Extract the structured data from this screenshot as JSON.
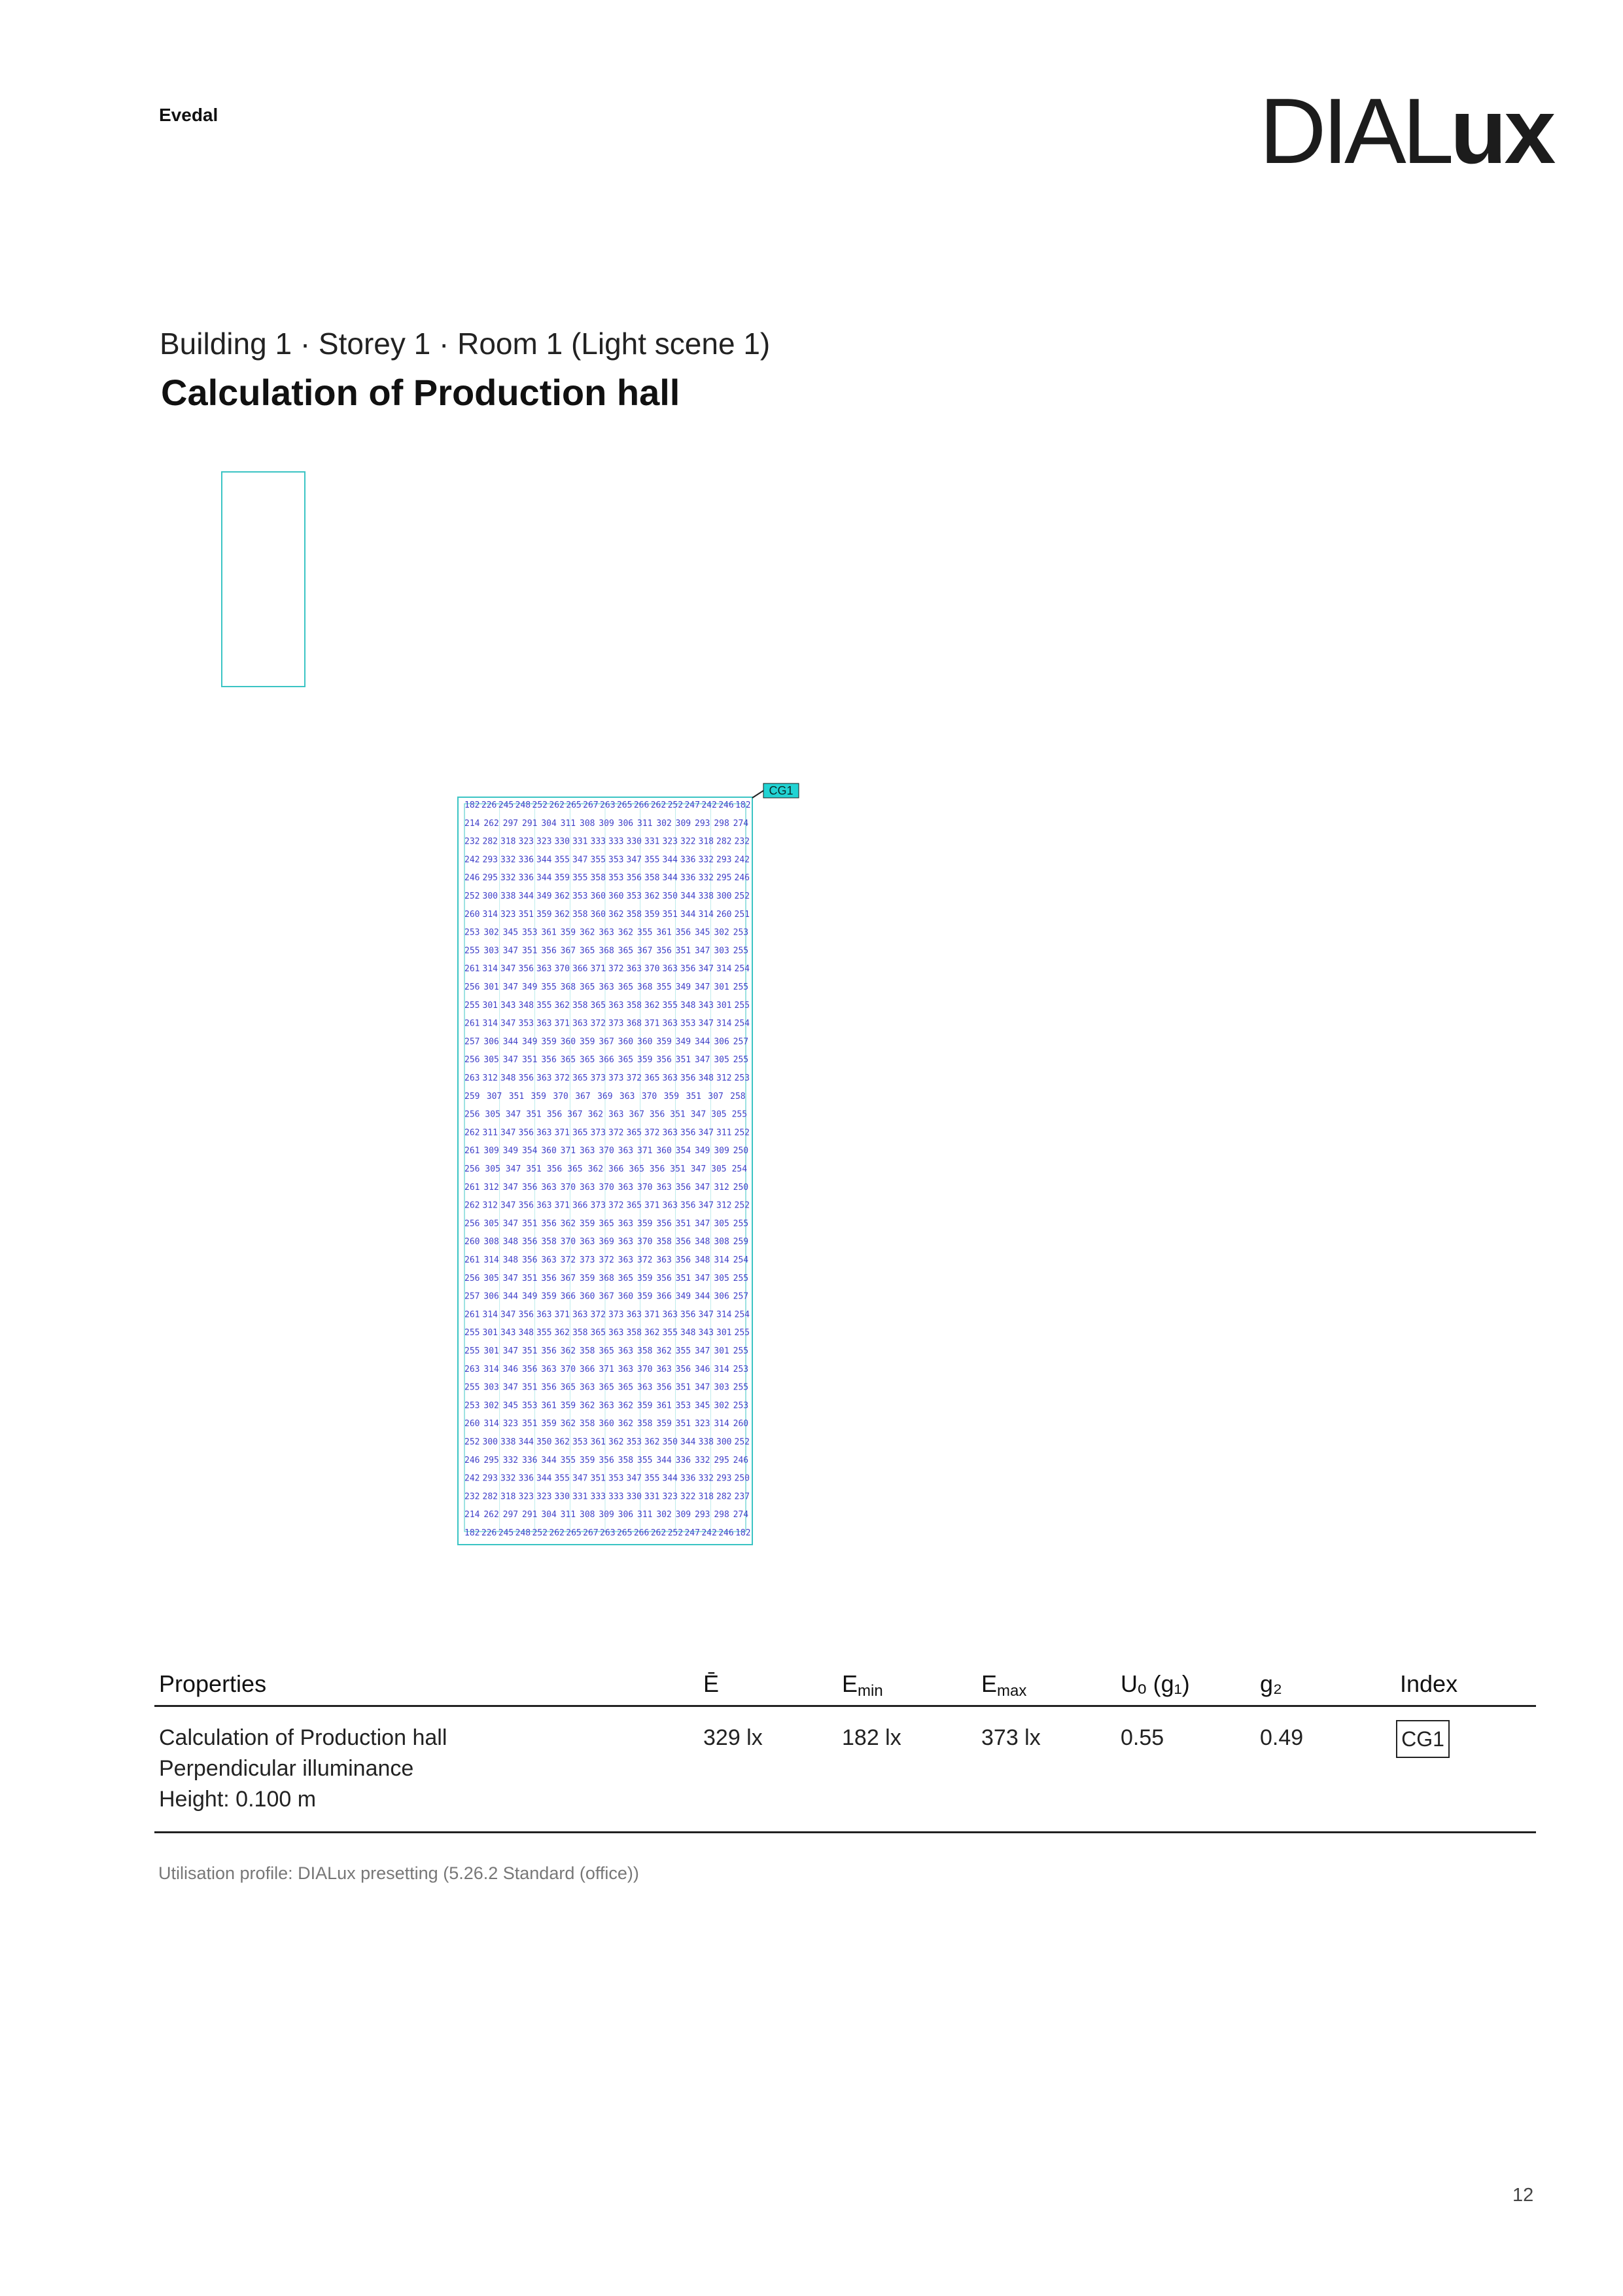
{
  "header": {
    "company": "Evedal",
    "logo_thin": "DIAL",
    "logo_bold": "ux"
  },
  "page": {
    "subtitle": "Building 1 · Storey 1 · Room 1 (Light scene 1)",
    "title": "Calculation of Production hall",
    "page_number": "12"
  },
  "diagram": {
    "label": "CG1",
    "colors": {
      "outline": "#3bc4c4",
      "values": "#3f3fc8",
      "label_fill": "#22d3d3"
    }
  },
  "grid_values": {
    "rows": [
      [
        "182",
        "226",
        "245",
        "248",
        "252",
        "262",
        "265",
        "267",
        "263",
        "265",
        "266",
        "262",
        "252",
        "247",
        "242",
        "246",
        "182"
      ],
      [
        "214",
        "262",
        "297",
        "291",
        "304",
        "311",
        "308",
        "309",
        "306",
        "311",
        "302",
        "309",
        "293",
        "298",
        "274"
      ],
      [
        "232",
        "282",
        "318",
        "323",
        "323",
        "330",
        "331",
        "333",
        "333",
        "330",
        "331",
        "323",
        "322",
        "318",
        "282",
        "232"
      ],
      [
        "242",
        "293",
        "332",
        "336",
        "344",
        "355",
        "347",
        "355",
        "353",
        "347",
        "355",
        "344",
        "336",
        "332",
        "293",
        "242"
      ],
      [
        "246",
        "295",
        "332",
        "336",
        "344",
        "359",
        "355",
        "358",
        "353",
        "356",
        "358",
        "344",
        "336",
        "332",
        "295",
        "246"
      ],
      [
        "252",
        "300",
        "338",
        "344",
        "349",
        "362",
        "353",
        "360",
        "360",
        "353",
        "362",
        "350",
        "344",
        "338",
        "300",
        "252"
      ],
      [
        "260",
        "314",
        "323",
        "351",
        "359",
        "362",
        "358",
        "360",
        "362",
        "358",
        "359",
        "351",
        "344",
        "314",
        "260",
        "251"
      ],
      [
        "253",
        "302",
        "345",
        "353",
        "361",
        "359",
        "362",
        "363",
        "362",
        "355",
        "361",
        "356",
        "345",
        "302",
        "253"
      ],
      [
        "255",
        "303",
        "347",
        "351",
        "356",
        "367",
        "365",
        "368",
        "365",
        "367",
        "356",
        "351",
        "347",
        "303",
        "255"
      ],
      [
        "261",
        "314",
        "347",
        "356",
        "363",
        "370",
        "366",
        "371",
        "372",
        "363",
        "370",
        "363",
        "356",
        "347",
        "314",
        "254"
      ],
      [
        "256",
        "301",
        "347",
        "349",
        "355",
        "368",
        "365",
        "363",
        "365",
        "368",
        "355",
        "349",
        "347",
        "301",
        "255"
      ],
      [
        "255",
        "301",
        "343",
        "348",
        "355",
        "362",
        "358",
        "365",
        "363",
        "358",
        "362",
        "355",
        "348",
        "343",
        "301",
        "255"
      ],
      [
        "261",
        "314",
        "347",
        "353",
        "363",
        "371",
        "363",
        "372",
        "373",
        "368",
        "371",
        "363",
        "353",
        "347",
        "314",
        "254"
      ],
      [
        "257",
        "306",
        "344",
        "349",
        "359",
        "360",
        "359",
        "367",
        "360",
        "360",
        "359",
        "349",
        "344",
        "306",
        "257"
      ],
      [
        "256",
        "305",
        "347",
        "351",
        "356",
        "365",
        "365",
        "366",
        "365",
        "359",
        "356",
        "351",
        "347",
        "305",
        "255"
      ],
      [
        "263",
        "312",
        "348",
        "356",
        "363",
        "372",
        "365",
        "373",
        "373",
        "372",
        "365",
        "363",
        "356",
        "348",
        "312",
        "253"
      ],
      [
        "259",
        "307",
        "351",
        "359",
        "370",
        "367",
        "369",
        "363",
        "370",
        "359",
        "351",
        "307",
        "258"
      ],
      [
        "256",
        "305",
        "347",
        "351",
        "356",
        "367",
        "362",
        "363",
        "367",
        "356",
        "351",
        "347",
        "305",
        "255"
      ],
      [
        "262",
        "311",
        "347",
        "356",
        "363",
        "371",
        "365",
        "373",
        "372",
        "365",
        "372",
        "363",
        "356",
        "347",
        "311",
        "252"
      ],
      [
        "261",
        "309",
        "349",
        "354",
        "360",
        "371",
        "363",
        "370",
        "363",
        "371",
        "360",
        "354",
        "349",
        "309",
        "250"
      ],
      [
        "256",
        "305",
        "347",
        "351",
        "356",
        "365",
        "362",
        "366",
        "365",
        "356",
        "351",
        "347",
        "305",
        "254"
      ],
      [
        "261",
        "312",
        "347",
        "356",
        "363",
        "370",
        "363",
        "370",
        "363",
        "370",
        "363",
        "356",
        "347",
        "312",
        "250"
      ],
      [
        "262",
        "312",
        "347",
        "356",
        "363",
        "371",
        "366",
        "373",
        "372",
        "365",
        "371",
        "363",
        "356",
        "347",
        "312",
        "252"
      ],
      [
        "256",
        "305",
        "347",
        "351",
        "356",
        "362",
        "359",
        "365",
        "363",
        "359",
        "356",
        "351",
        "347",
        "305",
        "255"
      ],
      [
        "260",
        "308",
        "348",
        "356",
        "358",
        "370",
        "363",
        "369",
        "363",
        "370",
        "358",
        "356",
        "348",
        "308",
        "259"
      ],
      [
        "261",
        "314",
        "348",
        "356",
        "363",
        "372",
        "373",
        "372",
        "363",
        "372",
        "363",
        "356",
        "348",
        "314",
        "254"
      ],
      [
        "256",
        "305",
        "347",
        "351",
        "356",
        "367",
        "359",
        "368",
        "365",
        "359",
        "356",
        "351",
        "347",
        "305",
        "255"
      ],
      [
        "257",
        "306",
        "344",
        "349",
        "359",
        "366",
        "360",
        "367",
        "360",
        "359",
        "366",
        "349",
        "344",
        "306",
        "257"
      ],
      [
        "261",
        "314",
        "347",
        "356",
        "363",
        "371",
        "363",
        "372",
        "373",
        "363",
        "371",
        "363",
        "356",
        "347",
        "314",
        "254"
      ],
      [
        "255",
        "301",
        "343",
        "348",
        "355",
        "362",
        "358",
        "365",
        "363",
        "358",
        "362",
        "355",
        "348",
        "343",
        "301",
        "255"
      ],
      [
        "255",
        "301",
        "347",
        "351",
        "356",
        "362",
        "358",
        "365",
        "363",
        "358",
        "362",
        "355",
        "347",
        "301",
        "255"
      ],
      [
        "263",
        "314",
        "346",
        "356",
        "363",
        "370",
        "366",
        "371",
        "363",
        "370",
        "363",
        "356",
        "346",
        "314",
        "253"
      ],
      [
        "255",
        "303",
        "347",
        "351",
        "356",
        "365",
        "363",
        "365",
        "365",
        "363",
        "356",
        "351",
        "347",
        "303",
        "255"
      ],
      [
        "253",
        "302",
        "345",
        "353",
        "361",
        "359",
        "362",
        "363",
        "362",
        "359",
        "361",
        "353",
        "345",
        "302",
        "253"
      ],
      [
        "260",
        "314",
        "323",
        "351",
        "359",
        "362",
        "358",
        "360",
        "362",
        "358",
        "359",
        "351",
        "323",
        "314",
        "260"
      ],
      [
        "252",
        "300",
        "338",
        "344",
        "350",
        "362",
        "353",
        "361",
        "362",
        "353",
        "362",
        "350",
        "344",
        "338",
        "300",
        "252"
      ],
      [
        "246",
        "295",
        "332",
        "336",
        "344",
        "355",
        "359",
        "356",
        "358",
        "355",
        "344",
        "336",
        "332",
        "295",
        "246"
      ],
      [
        "242",
        "293",
        "332",
        "336",
        "344",
        "355",
        "347",
        "351",
        "353",
        "347",
        "355",
        "344",
        "336",
        "332",
        "293",
        "250"
      ],
      [
        "232",
        "282",
        "318",
        "323",
        "323",
        "330",
        "331",
        "333",
        "333",
        "330",
        "331",
        "323",
        "322",
        "318",
        "282",
        "237"
      ],
      [
        "214",
        "262",
        "297",
        "291",
        "304",
        "311",
        "308",
        "309",
        "306",
        "311",
        "302",
        "309",
        "293",
        "298",
        "274"
      ],
      [
        "182",
        "226",
        "245",
        "248",
        "252",
        "262",
        "265",
        "267",
        "263",
        "265",
        "266",
        "262",
        "252",
        "247",
        "242",
        "246",
        "182"
      ]
    ]
  },
  "table": {
    "headers": {
      "properties": "Properties",
      "e_avg": "Ē",
      "e_min_main": "E",
      "e_min_sub": "min",
      "e_max_main": "E",
      "e_max_sub": "max",
      "uo": "Uₒ (g₁)",
      "g2": "g₂",
      "index": "Index"
    },
    "row": {
      "name": "Calculation of Production hall",
      "type": "Perpendicular illuminance",
      "height": "Height: 0.100 m",
      "e_avg": "329 lx",
      "e_min": "182 lx",
      "e_max": "373 lx",
      "uo": "0.55",
      "g2": "0.49",
      "index": "CG1"
    }
  },
  "footnote": "Utilisation profile: DIALux presetting (5.26.2 Standard (office))"
}
